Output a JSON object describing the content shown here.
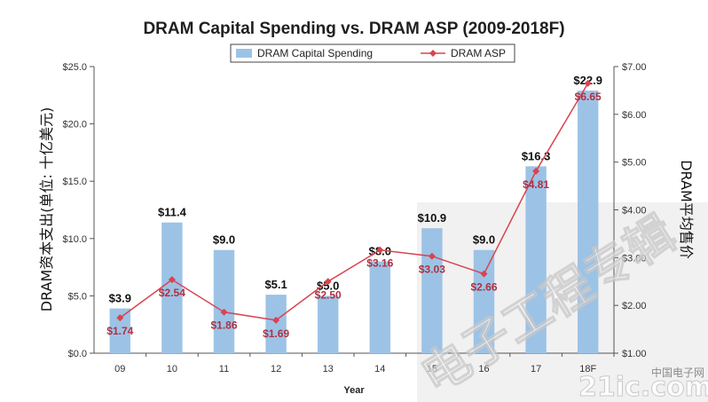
{
  "chart_data": {
    "type": "bar+line",
    "title": "DRAM Capital Spending vs. DRAM ASP (2009-2018F)",
    "categories": [
      "09",
      "10",
      "11",
      "12",
      "13",
      "14",
      "15",
      "16",
      "17",
      "18F"
    ],
    "xlabel": "Year",
    "ylabel_left": "DRAM资本支出(单位: 十亿美元)",
    "ylabel_right": "DRAM平均售价",
    "ylim_left": [
      0,
      25
    ],
    "ylim_right": [
      1,
      7
    ],
    "left_ticks": [
      "$0.0",
      "$5.0",
      "$10.0",
      "$15.0",
      "$20.0",
      "$25.0"
    ],
    "right_ticks": [
      "$1.00",
      "$2.00",
      "$3.00",
      "$4.00",
      "$5.00",
      "$6.00",
      "$7.00"
    ],
    "series": [
      {
        "name": "DRAM Capital Spending",
        "kind": "bar",
        "color": "#9cc3e6",
        "values": [
          3.9,
          11.4,
          9.0,
          5.1,
          5.0,
          8.0,
          10.9,
          9.0,
          16.3,
          22.9
        ],
        "labels": [
          "$3.9",
          "$11.4",
          "$9.0",
          "$5.1",
          "$5.0",
          "$8.0",
          "$10.9",
          "$9.0",
          "$16.3",
          "$22.9"
        ]
      },
      {
        "name": "DRAM ASP",
        "kind": "line",
        "color": "#d9434e",
        "values": [
          1.74,
          2.54,
          1.86,
          1.69,
          2.5,
          3.16,
          3.03,
          2.66,
          4.81,
          6.65
        ],
        "labels": [
          "$1.74",
          "$2.54",
          "$1.86",
          "$1.69",
          "$2.50",
          "$3.16",
          "$3.03",
          "$2.66",
          "$4.81",
          "$6.65"
        ]
      }
    ]
  },
  "watermark": {
    "text": "电子工程专辑",
    "logo": "21ic.com",
    "logo_sub": "中国电子网"
  }
}
